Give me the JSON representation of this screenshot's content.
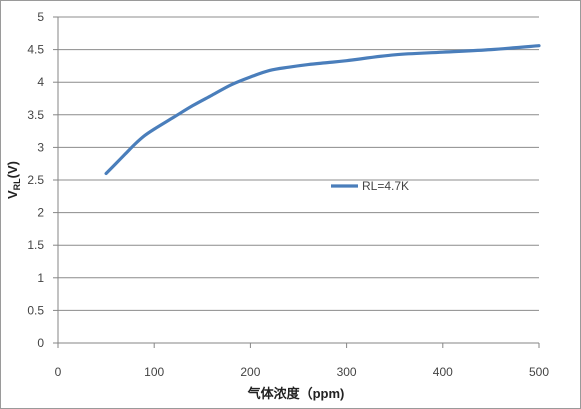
{
  "chart_data": {
    "type": "line",
    "title": "",
    "xlabel": "气体浓度（ppm)",
    "ylabel_main": "V",
    "ylabel_sub": "RL",
    "ylabel_suffix": "(V)",
    "xlim": [
      0,
      500
    ],
    "ylim": [
      0,
      5
    ],
    "x_ticks": [
      0,
      100,
      200,
      300,
      400,
      500
    ],
    "y_ticks": [
      "0",
      "0.5",
      "1",
      "1.5",
      "2",
      "2.5",
      "3",
      "3.5",
      "4",
      "4.5",
      "5"
    ],
    "grid": "horizontal",
    "legend_position": "center-right",
    "series": [
      {
        "name": "RL=4.7K",
        "color": "#4a7ebb",
        "x": [
          50,
          60,
          70,
          80,
          90,
          100,
          120,
          140,
          160,
          180,
          200,
          220,
          240,
          260,
          280,
          300,
          350,
          400,
          450,
          500
        ],
        "y": [
          2.6,
          2.75,
          2.9,
          3.05,
          3.18,
          3.28,
          3.46,
          3.64,
          3.8,
          3.96,
          4.08,
          4.18,
          4.23,
          4.27,
          4.3,
          4.33,
          4.42,
          4.46,
          4.5,
          4.56
        ]
      }
    ]
  }
}
